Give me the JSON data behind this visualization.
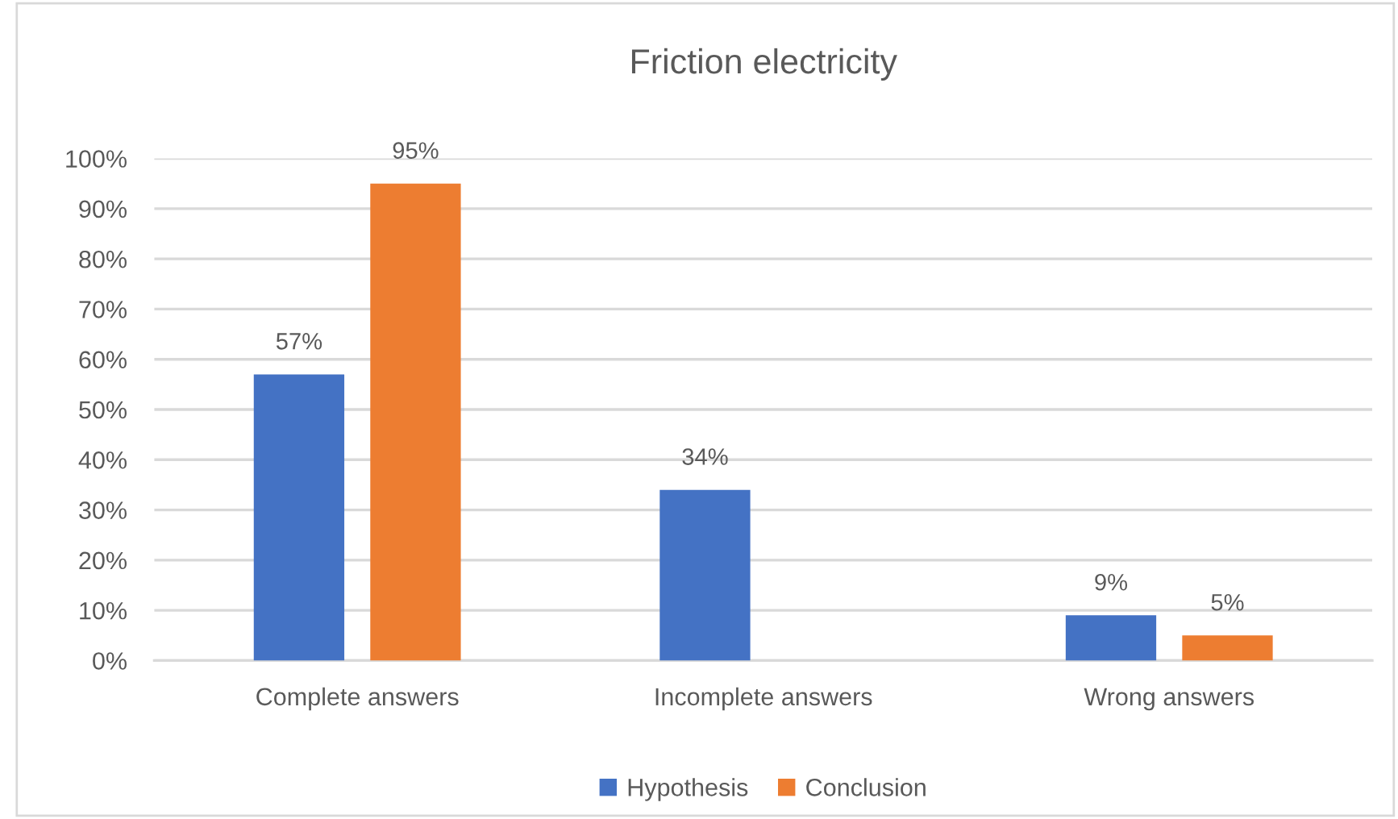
{
  "chart_data": {
    "type": "bar",
    "title": "Friction electricity",
    "categories": [
      "Complete answers",
      "Incomplete answers",
      "Wrong answers"
    ],
    "series": [
      {
        "name": "Hypothesis",
        "color": "#4472c4",
        "values": [
          57,
          34,
          9
        ],
        "value_labels": [
          "57%",
          "34%",
          "9%"
        ]
      },
      {
        "name": "Conclusion",
        "color": "#ed7d31",
        "values": [
          95,
          null,
          5
        ],
        "value_labels": [
          "95%",
          null,
          "5%"
        ]
      }
    ],
    "ylim": [
      0,
      100
    ],
    "yticks": [
      {
        "value": 0,
        "label": "0%"
      },
      {
        "value": 10,
        "label": "10%"
      },
      {
        "value": 20,
        "label": "20%"
      },
      {
        "value": 30,
        "label": "30%"
      },
      {
        "value": 40,
        "label": "40%"
      },
      {
        "value": 50,
        "label": "50%"
      },
      {
        "value": 60,
        "label": "60%"
      },
      {
        "value": 70,
        "label": "70%"
      },
      {
        "value": 80,
        "label": "80%"
      },
      {
        "value": 90,
        "label": "90%"
      },
      {
        "value": 100,
        "label": "100%"
      }
    ],
    "grid": "y",
    "legend": "bottom"
  }
}
